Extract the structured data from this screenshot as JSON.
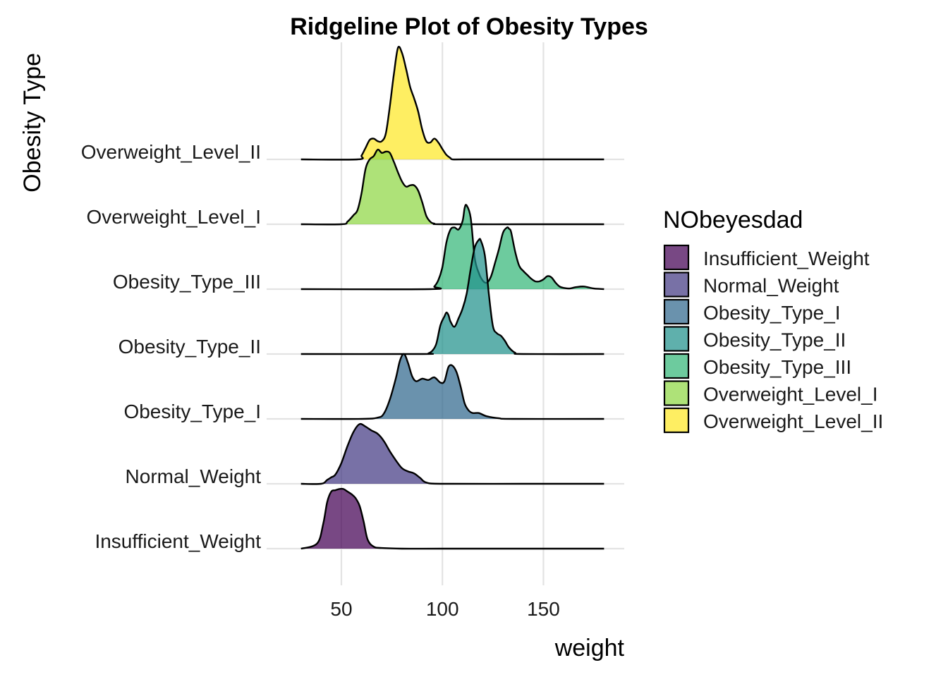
{
  "chart_data": {
    "type": "ridgeline",
    "title": "Ridgeline Plot of Obesity Types",
    "xlabel": "weight",
    "ylabel": "Obesity Type",
    "xlim": [
      13,
      190
    ],
    "x_ticks": [
      50,
      100,
      150
    ],
    "grid": true,
    "legend": {
      "title": "NObeyesdad",
      "position": "right"
    },
    "categories": [
      "Insufficient_Weight",
      "Normal_Weight",
      "Obesity_Type_I",
      "Obesity_Type_II",
      "Obesity_Type_III",
      "Overweight_Level_I",
      "Overweight_Level_II"
    ],
    "series": [
      {
        "name": "Insufficient_Weight",
        "color": "#440154",
        "x": [
          30,
          38,
          41,
          43,
          45,
          47,
          49,
          51,
          53,
          55,
          57,
          59,
          61,
          63,
          66,
          70,
          80,
          100,
          140,
          180
        ],
        "density": [
          0,
          0.08,
          0.38,
          0.72,
          0.88,
          0.9,
          0.92,
          0.92,
          0.88,
          0.84,
          0.78,
          0.66,
          0.42,
          0.14,
          0.03,
          0.01,
          0,
          0,
          0,
          0
        ]
      },
      {
        "name": "Normal_Weight",
        "color": "#443A83",
        "x": [
          30,
          40,
          43,
          45,
          47,
          50,
          53,
          56,
          59,
          62,
          65,
          68,
          71,
          74,
          77,
          80,
          83,
          86,
          89,
          92,
          100,
          140,
          180
        ],
        "density": [
          0,
          0,
          0.06,
          0.1,
          0.14,
          0.32,
          0.58,
          0.8,
          0.92,
          0.88,
          0.82,
          0.77,
          0.66,
          0.5,
          0.36,
          0.24,
          0.19,
          0.16,
          0.09,
          0.02,
          0,
          0,
          0
        ]
      },
      {
        "name": "Obesity_Type_I",
        "color": "#31688E",
        "x": [
          30,
          60,
          68,
          71,
          74,
          77,
          79,
          81,
          83,
          85,
          87,
          90,
          93,
          96,
          99,
          101,
          103,
          105,
          107,
          109,
          111,
          113,
          115,
          118,
          122,
          128,
          135,
          180
        ],
        "density": [
          0,
          0,
          0.02,
          0.08,
          0.3,
          0.63,
          0.9,
          1.0,
          0.86,
          0.66,
          0.58,
          0.62,
          0.6,
          0.64,
          0.56,
          0.58,
          0.8,
          0.82,
          0.72,
          0.5,
          0.24,
          0.13,
          0.09,
          0.09,
          0.04,
          0.01,
          0,
          0
        ]
      },
      {
        "name": "Obesity_Type_II",
        "color": "#21918C",
        "x": [
          30,
          90,
          93,
          95,
          97,
          99,
          101,
          102,
          103,
          104,
          106,
          108,
          110,
          112,
          114,
          116,
          118,
          119,
          121,
          123,
          125,
          127,
          129,
          131,
          133,
          136,
          140,
          180
        ],
        "density": [
          0,
          0,
          0.01,
          0.05,
          0.16,
          0.44,
          0.58,
          0.64,
          0.6,
          0.5,
          0.42,
          0.55,
          0.7,
          0.93,
          1.31,
          1.64,
          1.76,
          1.75,
          1.52,
          0.92,
          0.43,
          0.32,
          0.28,
          0.2,
          0.1,
          0.02,
          0,
          0
        ]
      },
      {
        "name": "Obesity_Type_III",
        "color": "#35B779",
        "x": [
          30,
          94,
          96,
          98,
          100,
          102,
          104,
          106,
          108,
          110,
          111,
          112,
          114,
          116,
          118,
          120,
          122,
          124,
          126,
          128,
          130,
          132,
          133,
          134,
          136,
          138,
          140,
          142,
          144,
          146,
          148,
          150,
          152,
          154,
          156,
          158,
          160,
          163,
          166,
          170,
          175,
          180
        ],
        "density": [
          0,
          0,
          0.04,
          0.14,
          0.34,
          0.72,
          0.92,
          0.95,
          0.92,
          1.05,
          1.25,
          1.29,
          1.1,
          0.48,
          0.25,
          0.13,
          0.1,
          0.19,
          0.4,
          0.62,
          0.87,
          0.95,
          0.93,
          0.88,
          0.58,
          0.36,
          0.28,
          0.22,
          0.16,
          0.12,
          0.12,
          0.15,
          0.2,
          0.18,
          0.1,
          0.04,
          0.02,
          0.01,
          0.03,
          0.04,
          0.01,
          0
        ]
      },
      {
        "name": "Overweight_Level_I",
        "color": "#8FD744",
        "x": [
          30,
          50,
          53,
          56,
          58,
          60,
          62,
          64,
          66,
          68,
          70,
          72,
          74,
          76,
          78,
          80,
          82,
          84,
          86,
          88,
          90,
          92,
          94,
          96,
          100,
          140,
          180
        ],
        "density": [
          0,
          0,
          0.04,
          0.14,
          0.22,
          0.48,
          0.86,
          1.0,
          1.05,
          1.15,
          1.1,
          1.12,
          1.1,
          0.96,
          0.8,
          0.66,
          0.58,
          0.6,
          0.6,
          0.52,
          0.34,
          0.13,
          0.04,
          0.01,
          0,
          0,
          0
        ]
      },
      {
        "name": "Overweight_Level_II",
        "color": "#FDE725",
        "x": [
          30,
          58,
          60,
          62,
          64,
          66,
          68,
          70,
          72,
          74,
          76,
          78,
          80,
          82,
          84,
          86,
          88,
          90,
          92,
          94,
          96,
          98,
          100,
          102,
          104,
          105,
          110,
          140,
          180
        ],
        "density": [
          0,
          0,
          0.06,
          0.18,
          0.3,
          0.32,
          0.28,
          0.28,
          0.4,
          0.82,
          1.32,
          1.72,
          1.64,
          1.4,
          1.12,
          0.94,
          0.74,
          0.46,
          0.28,
          0.26,
          0.32,
          0.26,
          0.16,
          0.07,
          0.02,
          0,
          0,
          0,
          0
        ]
      }
    ]
  }
}
